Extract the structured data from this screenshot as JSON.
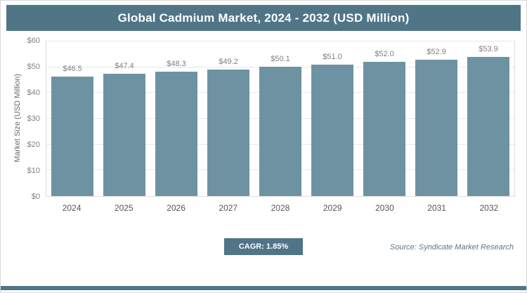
{
  "header": {
    "title": "Global Cadmium Market, 2024 - 2032 (USD Million)"
  },
  "chart_data": {
    "type": "bar",
    "title": "Global Cadmium Market, 2024 - 2032 (USD Million)",
    "categories": [
      "2024",
      "2025",
      "2026",
      "2027",
      "2028",
      "2029",
      "2030",
      "2031",
      "2032"
    ],
    "values": [
      46.5,
      47.4,
      48.3,
      49.2,
      50.1,
      51.0,
      52.0,
      52.9,
      53.9
    ],
    "value_labels": [
      "$46.5",
      "$47.4",
      "$48.3",
      "$49.2",
      "$50.1",
      "$51.0",
      "$52.0",
      "$52.9",
      "$53.9"
    ],
    "xlabel": "",
    "ylabel": "Market Size (USD Million)",
    "ylim": [
      0,
      60
    ],
    "ytick_step": 10,
    "ytick_labels": [
      "$0",
      "$10",
      "$20",
      "$30",
      "$40",
      "$50",
      "$60"
    ],
    "grid": true,
    "legend": "none",
    "bar_color": "#6d93a3"
  },
  "footer": {
    "cagr_label": "CAGR: 1.85%",
    "source": "Source: Syndicate Market Research"
  },
  "colors": {
    "header_bg": "#4f7587",
    "bar": "#6d93a3",
    "accent_bar": "#4f7587",
    "grid": "#e7e7e7",
    "tick_text": "#808080",
    "value_text": "#7f7f7f"
  }
}
